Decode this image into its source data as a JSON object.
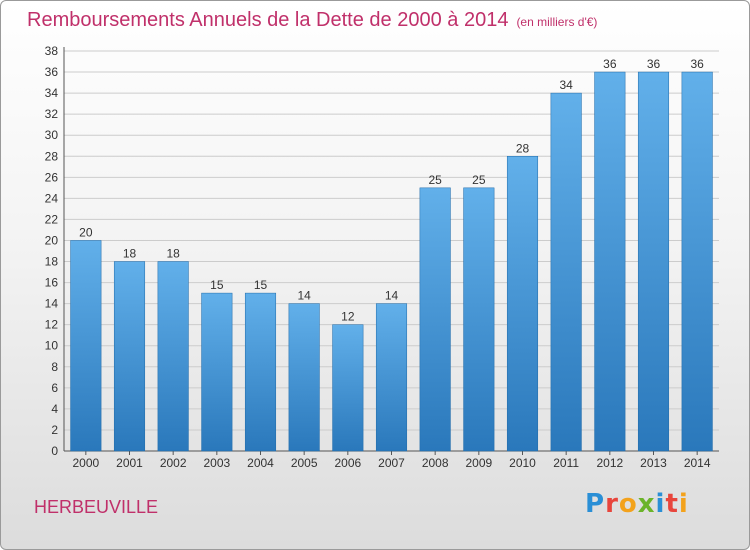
{
  "chart_data": {
    "type": "bar",
    "title": "Remboursements Annuels de la Dette de 2000 à 2014",
    "unit_note": "(en milliers d'€)",
    "categories": [
      "2000",
      "2001",
      "2002",
      "2003",
      "2004",
      "2005",
      "2006",
      "2007",
      "2008",
      "2009",
      "2010",
      "2011",
      "2012",
      "2013",
      "2014"
    ],
    "values": [
      20,
      18,
      18,
      15,
      15,
      14,
      12,
      14,
      25,
      25,
      28,
      34,
      36,
      36,
      36
    ],
    "ylim": [
      0,
      38
    ],
    "ytick_step": 2,
    "xlabel": "",
    "ylabel": "",
    "grid": true,
    "colors": {
      "bar_top": "#62b0ea",
      "bar_bottom": "#2a78bb",
      "grid": "#cccccc",
      "text": "#333333"
    }
  },
  "footer": {
    "commune": "HERBEUVILLE",
    "logo_text": "Proxiti",
    "logo_colors": [
      "#2a8fd6",
      "#e8453c",
      "#f3a21c",
      "#6bb42a",
      "#2a8fd6",
      "#e8453c",
      "#f3a21c"
    ]
  }
}
